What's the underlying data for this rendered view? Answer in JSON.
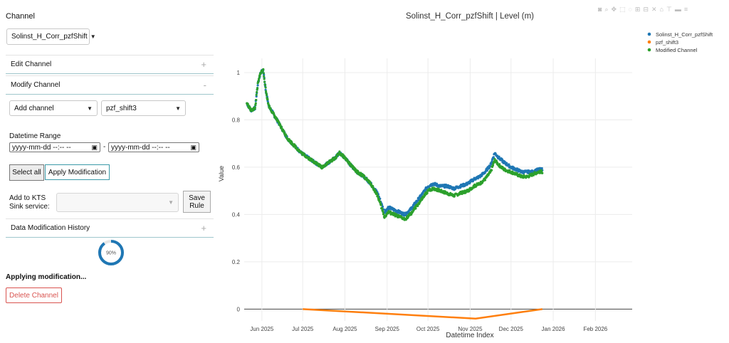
{
  "sidebar": {
    "channel_label": "Channel",
    "channel_select": "Solinst_H_Corr_pzfShift",
    "edit_channel": "Edit Channel",
    "edit_sign": "+",
    "modify_channel": "Modify Channel",
    "modify_sign": "-",
    "add_select": "Add channel",
    "target_select": "pzf_shift3",
    "datetime_range_label": "Datetime Range",
    "start_placeholder": "yyyy-mm-dd --:-- --",
    "end_placeholder": "yyyy-mm-dd --:-- --",
    "range_separator": "-",
    "select_all": "Select all",
    "apply_modification": "Apply Modification",
    "add_to_kts_line1": "Add to KTS",
    "add_to_kts_line2": "Sink service:",
    "save_rule_line1": "Save",
    "save_rule_line2": "Rule",
    "history": "Data Modification History",
    "history_sign": "+",
    "progress_percent": 90,
    "progress_label": "90%",
    "status_text": "Applying modification...",
    "delete_channel": "Delete Channel"
  },
  "colors": {
    "accent": "#1f77b4",
    "orange": "#ff7f0e",
    "green": "#2ca02c",
    "danger": "#d9534f"
  },
  "modebar_icons": [
    "camera-icon",
    "zoom-icon",
    "pan-icon",
    "box-select-icon",
    "lasso-icon",
    "zoom-in-icon",
    "zoom-out-icon",
    "autoscale-icon",
    "reset-axes-icon",
    "spike-lines-icon",
    "hover-closest-icon",
    "hover-compare-icon"
  ],
  "chart_data": {
    "type": "scatter",
    "title": "Solinst_H_Corr_pzfShift | Level (m)",
    "xlabel": "Datetime Index",
    "ylabel": "Value",
    "ylim": [
      -0.05,
      1.06
    ],
    "yticks": [
      0,
      0.2,
      0.4,
      0.6,
      0.8,
      1
    ],
    "ytick_labels": [
      "0",
      "0.2",
      "0.4",
      "0.6",
      "0.8",
      "1"
    ],
    "xlim": [
      "2025-05-19",
      "2026-02-28"
    ],
    "xticks": [
      "2025-06-01",
      "2025-07-01",
      "2025-08-01",
      "2025-09-01",
      "2025-10-01",
      "2025-11-01",
      "2025-12-01",
      "2026-01-01",
      "2026-02-01"
    ],
    "xtick_labels": [
      "Jun 2025",
      "Jul 2025",
      "Aug 2025",
      "Sep 2025",
      "Oct 2025",
      "Nov 2025",
      "Dec 2025",
      "Jan 2026",
      "Feb 2026"
    ],
    "legend_position": "top-right",
    "series": [
      {
        "name": "Solinst_H_Corr_pzfShift",
        "color": "#1f77b4",
        "mode": "markers",
        "points": [
          [
            "2025-05-21",
            0.87
          ],
          [
            "2025-05-24",
            0.84
          ],
          [
            "2025-05-27",
            0.85
          ],
          [
            "2025-05-29",
            0.95
          ],
          [
            "2025-05-31",
            1.0
          ],
          [
            "2025-06-02",
            1.01
          ],
          [
            "2025-06-04",
            0.92
          ],
          [
            "2025-06-06",
            0.86
          ],
          [
            "2025-06-10",
            0.82
          ],
          [
            "2025-06-15",
            0.77
          ],
          [
            "2025-06-20",
            0.72
          ],
          [
            "2025-06-25",
            0.69
          ],
          [
            "2025-06-30",
            0.66
          ],
          [
            "2025-07-05",
            0.64
          ],
          [
            "2025-07-10",
            0.62
          ],
          [
            "2025-07-15",
            0.6
          ],
          [
            "2025-07-20",
            0.62
          ],
          [
            "2025-07-25",
            0.64
          ],
          [
            "2025-07-28",
            0.66
          ],
          [
            "2025-08-01",
            0.64
          ],
          [
            "2025-08-05",
            0.61
          ],
          [
            "2025-08-10",
            0.58
          ],
          [
            "2025-08-15",
            0.56
          ],
          [
            "2025-08-20",
            0.53
          ],
          [
            "2025-08-25",
            0.49
          ],
          [
            "2025-08-30",
            0.41
          ],
          [
            "2025-09-02",
            0.43
          ],
          [
            "2025-09-06",
            0.42
          ],
          [
            "2025-09-10",
            0.41
          ],
          [
            "2025-09-14",
            0.4
          ],
          [
            "2025-09-18",
            0.42
          ],
          [
            "2025-09-22",
            0.45
          ],
          [
            "2025-09-26",
            0.48
          ],
          [
            "2025-10-01",
            0.52
          ],
          [
            "2025-10-05",
            0.53
          ],
          [
            "2025-10-10",
            0.52
          ],
          [
            "2025-10-15",
            0.52
          ],
          [
            "2025-10-20",
            0.51
          ],
          [
            "2025-10-25",
            0.52
          ],
          [
            "2025-10-30",
            0.53
          ],
          [
            "2025-11-04",
            0.55
          ],
          [
            "2025-11-08",
            0.56
          ],
          [
            "2025-11-12",
            0.58
          ],
          [
            "2025-11-16",
            0.61
          ],
          [
            "2025-11-19",
            0.66
          ],
          [
            "2025-11-22",
            0.64
          ],
          [
            "2025-11-26",
            0.62
          ],
          [
            "2025-12-01",
            0.6
          ],
          [
            "2025-12-05",
            0.59
          ],
          [
            "2025-12-09",
            0.58
          ],
          [
            "2025-12-13",
            0.58
          ],
          [
            "2025-12-17",
            0.58
          ],
          [
            "2025-12-21",
            0.59
          ],
          [
            "2025-12-24",
            0.59
          ]
        ]
      },
      {
        "name": "pzf_shift3",
        "color": "#ff7f0e",
        "mode": "lines",
        "points": [
          [
            "2025-07-01",
            0.0
          ],
          [
            "2025-11-05",
            -0.04
          ],
          [
            "2025-12-24",
            0.0
          ]
        ]
      },
      {
        "name": "Modified Channel",
        "color": "#2ca02c",
        "mode": "markers",
        "points": [
          [
            "2025-05-21",
            0.87
          ],
          [
            "2025-05-24",
            0.84
          ],
          [
            "2025-05-27",
            0.85
          ],
          [
            "2025-05-29",
            0.95
          ],
          [
            "2025-05-31",
            1.0
          ],
          [
            "2025-06-02",
            1.01
          ],
          [
            "2025-06-04",
            0.92
          ],
          [
            "2025-06-06",
            0.86
          ],
          [
            "2025-06-10",
            0.82
          ],
          [
            "2025-06-15",
            0.77
          ],
          [
            "2025-06-20",
            0.72
          ],
          [
            "2025-06-25",
            0.69
          ],
          [
            "2025-06-30",
            0.66
          ],
          [
            "2025-07-05",
            0.64
          ],
          [
            "2025-07-10",
            0.62
          ],
          [
            "2025-07-15",
            0.6
          ],
          [
            "2025-07-20",
            0.62
          ],
          [
            "2025-07-25",
            0.64
          ],
          [
            "2025-07-28",
            0.66
          ],
          [
            "2025-08-01",
            0.64
          ],
          [
            "2025-08-05",
            0.61
          ],
          [
            "2025-08-10",
            0.58
          ],
          [
            "2025-08-15",
            0.56
          ],
          [
            "2025-08-20",
            0.53
          ],
          [
            "2025-08-25",
            0.48
          ],
          [
            "2025-08-30",
            0.39
          ],
          [
            "2025-09-02",
            0.41
          ],
          [
            "2025-09-06",
            0.4
          ],
          [
            "2025-09-10",
            0.39
          ],
          [
            "2025-09-14",
            0.38
          ],
          [
            "2025-09-18",
            0.4
          ],
          [
            "2025-09-22",
            0.43
          ],
          [
            "2025-09-26",
            0.46
          ],
          [
            "2025-10-01",
            0.5
          ],
          [
            "2025-10-05",
            0.51
          ],
          [
            "2025-10-10",
            0.5
          ],
          [
            "2025-10-15",
            0.49
          ],
          [
            "2025-10-20",
            0.48
          ],
          [
            "2025-10-25",
            0.49
          ],
          [
            "2025-10-30",
            0.5
          ],
          [
            "2025-11-04",
            0.52
          ],
          [
            "2025-11-08",
            0.53
          ],
          [
            "2025-11-12",
            0.55
          ],
          [
            "2025-11-16",
            0.58
          ],
          [
            "2025-11-19",
            0.63
          ],
          [
            "2025-11-22",
            0.61
          ],
          [
            "2025-11-26",
            0.59
          ],
          [
            "2025-12-01",
            0.58
          ],
          [
            "2025-12-05",
            0.57
          ],
          [
            "2025-12-09",
            0.56
          ],
          [
            "2025-12-13",
            0.56
          ],
          [
            "2025-12-17",
            0.57
          ],
          [
            "2025-12-21",
            0.58
          ],
          [
            "2025-12-24",
            0.58
          ]
        ]
      }
    ]
  }
}
